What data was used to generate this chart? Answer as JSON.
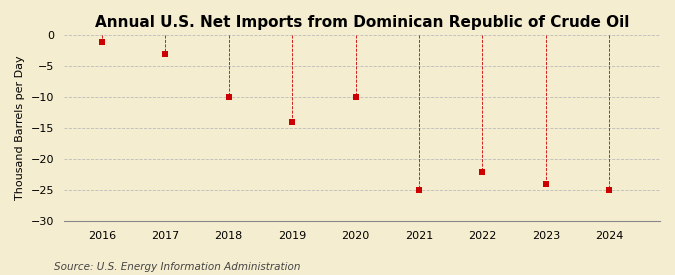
{
  "title": "Annual U.S. Net Imports from Dominican Republic of Crude Oil",
  "ylabel": "Thousand Barrels per Day",
  "source": "Source: U.S. Energy Information Administration",
  "years": [
    2016,
    2017,
    2018,
    2019,
    2020,
    2021,
    2022,
    2023,
    2024
  ],
  "values": [
    -1,
    -3,
    -10,
    -14,
    -10,
    -25,
    -22,
    -24,
    -25
  ],
  "ylim": [
    -30,
    0
  ],
  "yticks": [
    0,
    -5,
    -10,
    -15,
    -20,
    -25,
    -30
  ],
  "xlim": [
    2015.4,
    2024.8
  ],
  "xticks": [
    2016,
    2017,
    2018,
    2019,
    2020,
    2021,
    2022,
    2023,
    2024
  ],
  "marker_color": "#cc0000",
  "marker_size": 18,
  "background_color": "#f5edcf",
  "grid_color": "#bbbbbb",
  "vline_color": "#cc0000",
  "title_fontsize": 11,
  "label_fontsize": 8,
  "tick_fontsize": 8,
  "source_fontsize": 7.5
}
